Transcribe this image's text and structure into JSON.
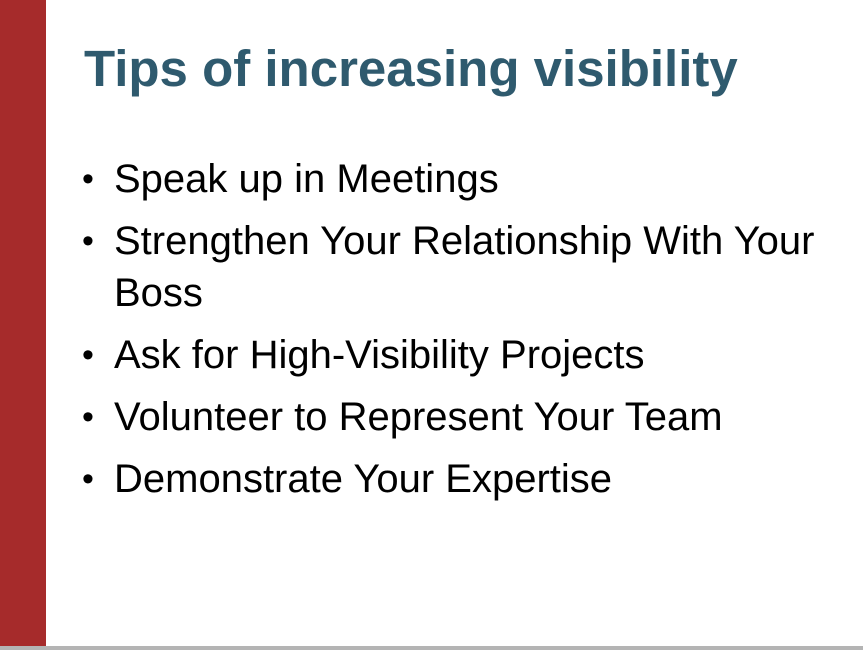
{
  "slide": {
    "title": "Tips of increasing visibility",
    "bullet_char": "•",
    "bullets": [
      "Speak up in Meetings",
      "Strengthen Your Relationship With Your Boss",
      "Ask for High-Visibility Projects",
      "Volunteer to Represent Your Team",
      "Demonstrate Your Expertise"
    ]
  },
  "colors": {
    "accent_bar": "#a62b2b",
    "title": "#2f5a6e",
    "body_text": "#000000"
  }
}
